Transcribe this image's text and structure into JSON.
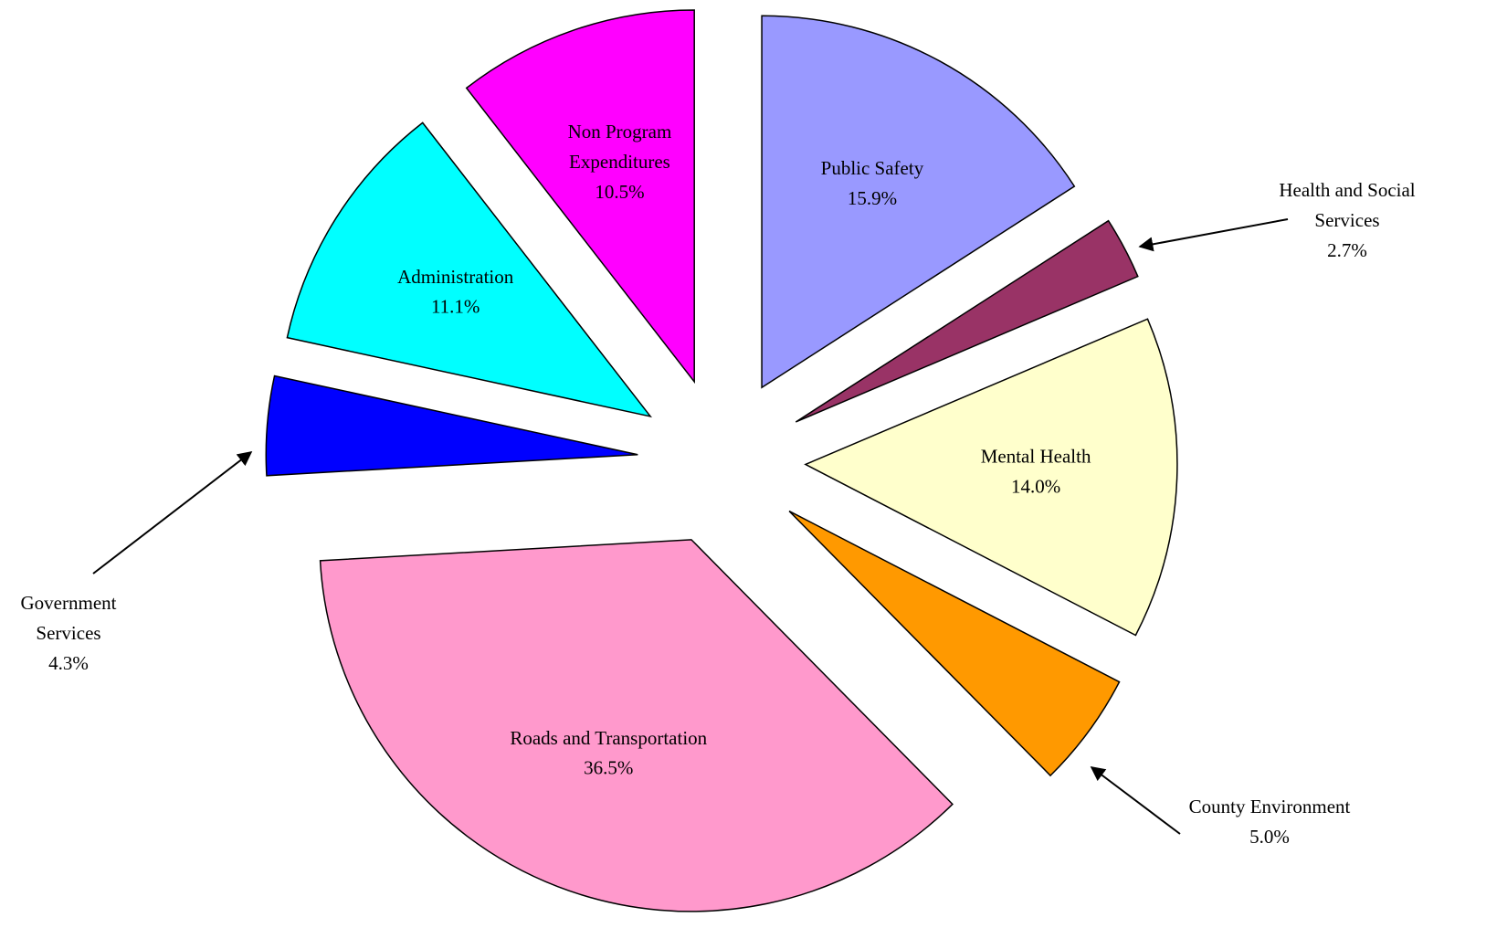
{
  "chart_data": {
    "type": "pie",
    "categories": [
      "Public Safety",
      "Health and Social Services",
      "Mental Health",
      "County Environment",
      "Roads and Transportation",
      "Government Services",
      "Administration",
      "Non Program Expenditures"
    ],
    "values": [
      15.9,
      2.7,
      14.0,
      5.0,
      36.5,
      4.3,
      11.1,
      10.5
    ],
    "value_labels": [
      "15.9%",
      "2.7%",
      "14.0%",
      "5.0%",
      "36.5%",
      "4.3%",
      "11.1%",
      "10.5%"
    ],
    "colors": [
      "#9999ff",
      "#993366",
      "#ffffcc",
      "#ff9900",
      "#ff99cc",
      "#0000ff",
      "#00ffff",
      "#ff00ff"
    ],
    "exploded": true
  }
}
